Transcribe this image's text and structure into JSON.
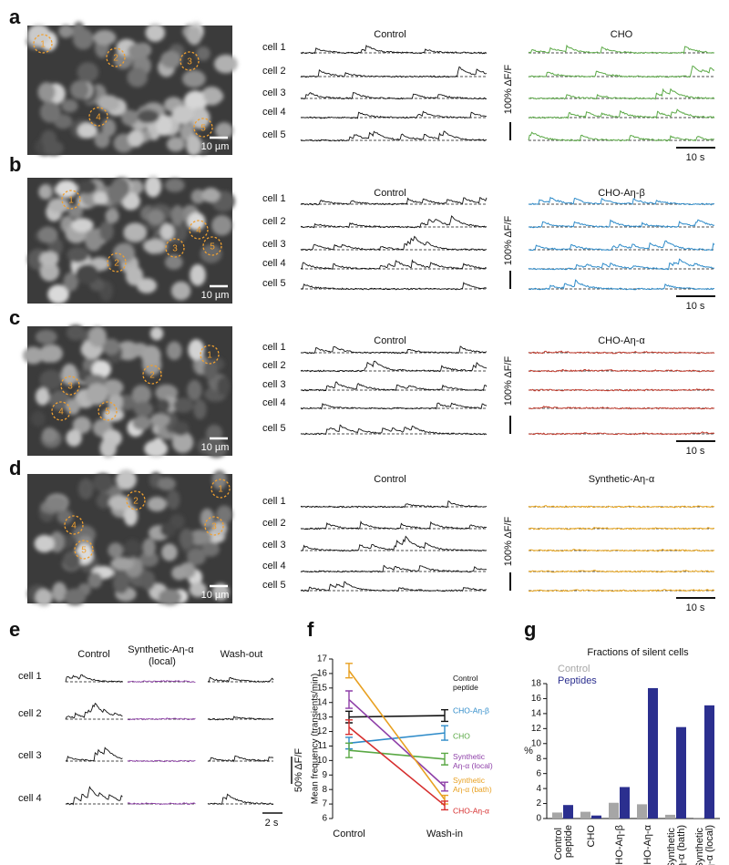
{
  "figure": {
    "panels": [
      {
        "letter": "a",
        "image_scale": "10 µm",
        "rois": [
          "1",
          "2",
          "3",
          "4",
          "5"
        ],
        "left_title": "Control",
        "right_title": "CHO",
        "cells": [
          "cell 1",
          "cell 2",
          "cell 3",
          "cell 4",
          "cell 5"
        ],
        "amplitude_scale": "100% ΔF/F",
        "time_scale": "10 s"
      },
      {
        "letter": "b",
        "image_scale": "10 µm",
        "rois": [
          "1",
          "2",
          "3",
          "4",
          "5"
        ],
        "left_title": "Control",
        "right_title": "CHO-Aη-β",
        "cells": [
          "cell 1",
          "cell 2",
          "cell 3",
          "cell 4",
          "cell 5"
        ],
        "amplitude_scale": "100% ΔF/F",
        "time_scale": "10 s"
      },
      {
        "letter": "c",
        "image_scale": "10 µm",
        "rois": [
          "1",
          "2",
          "3",
          "4",
          "5"
        ],
        "left_title": "Control",
        "right_title": "CHO-Aη-α",
        "cells": [
          "cell 1",
          "cell 2",
          "cell 3",
          "cell 4",
          "cell 5"
        ],
        "amplitude_scale": "100% ΔF/F",
        "time_scale": "10 s"
      },
      {
        "letter": "d",
        "image_scale": "10 µm",
        "rois": [
          "1",
          "2",
          "3",
          "4",
          "5"
        ],
        "left_title": "Control",
        "right_title": "Synthetic-Aη-α",
        "cells": [
          "cell 1",
          "cell 2",
          "cell 3",
          "cell 4",
          "cell 5"
        ],
        "amplitude_scale": "100% ΔF/F",
        "time_scale": "10 s"
      }
    ]
  },
  "panel_e": {
    "letter": "e",
    "titles": [
      "Control",
      "Synthetic-Aη-α (local)",
      "Wash-out"
    ],
    "cells": [
      "cell 1",
      "cell 2",
      "cell 3",
      "cell 4"
    ],
    "amplitude_scale": "50% ΔF/F",
    "time_scale": "2 s"
  },
  "chart_data": [
    {
      "letter": "f",
      "type": "line",
      "ylabel": "Mean frequency (transients/min)",
      "categories": [
        "Control",
        "Wash-in"
      ],
      "ylim": [
        6,
        17
      ],
      "yticks": [
        6,
        7,
        8,
        9,
        10,
        11,
        12,
        13,
        14,
        15,
        16,
        17
      ],
      "series": [
        {
          "name": "Control peptide",
          "color": "#111111",
          "values": [
            13.0,
            13.1
          ],
          "errors": [
            0.4,
            0.4
          ]
        },
        {
          "name": "CHO-Aη-β",
          "color": "#2e8bc9",
          "values": [
            11.2,
            11.9
          ],
          "errors": [
            0.4,
            0.5
          ]
        },
        {
          "name": "CHO",
          "color": "#5aa845",
          "values": [
            10.7,
            10.1
          ],
          "errors": [
            0.5,
            0.4
          ]
        },
        {
          "name": "Synthetic Aη-α (local)",
          "color": "#8e3fa8",
          "values": [
            14.2,
            8.2
          ],
          "errors": [
            0.6,
            0.3
          ]
        },
        {
          "name": "Synthetic Aη-α (bath)",
          "color": "#e8a020",
          "values": [
            16.2,
            7.3
          ],
          "errors": [
            0.5,
            0.3
          ]
        },
        {
          "name": "CHO-Aη-α",
          "color": "#d62d2d",
          "values": [
            12.3,
            6.9
          ],
          "errors": [
            0.5,
            0.3
          ]
        }
      ]
    },
    {
      "letter": "g",
      "type": "bar",
      "title": "Fractions of silent cells",
      "ylabel": "%",
      "categories": [
        "Control peptide",
        "CHO",
        "CHO-Aη-β",
        "CHO-Aη-α",
        "Synthetic Aη-α (bath)",
        "Synthetic Aη-α (local)"
      ],
      "ylim": [
        0,
        18
      ],
      "yticks": [
        0,
        2,
        4,
        6,
        8,
        10,
        12,
        14,
        16,
        18
      ],
      "series": [
        {
          "name": "Control",
          "color": "#a6a6a6",
          "values": [
            0.8,
            0.9,
            2.1,
            1.9,
            0.5,
            0.1
          ]
        },
        {
          "name": "Peptides",
          "color": "#2b2f8f",
          "values": [
            1.8,
            0.4,
            4.2,
            17.4,
            12.2,
            15.1
          ]
        }
      ]
    }
  ]
}
